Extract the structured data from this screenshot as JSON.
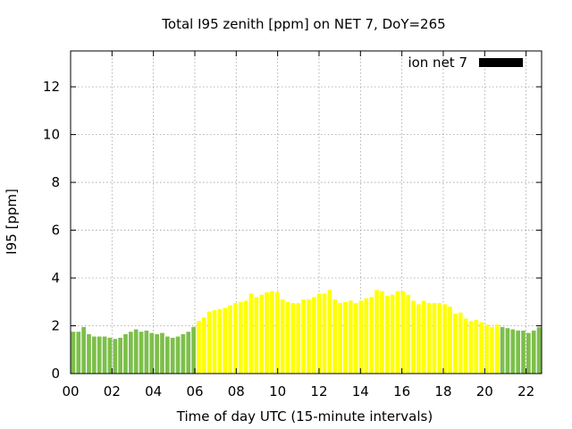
{
  "chart_data": {
    "type": "bar",
    "title": "Total I95 zenith [ppm] on NET 7, DoY=265",
    "xlabel": "Time of day UTC (15-minute intervals)",
    "ylabel": "I95 [ppm]",
    "xlim": [
      0,
      22.75
    ],
    "ylim": [
      0,
      13.5
    ],
    "xticks": [
      {
        "value": 0,
        "label": "00"
      },
      {
        "value": 2,
        "label": "02"
      },
      {
        "value": 4,
        "label": "04"
      },
      {
        "value": 6,
        "label": "06"
      },
      {
        "value": 8,
        "label": "08"
      },
      {
        "value": 10,
        "label": "10"
      },
      {
        "value": 12,
        "label": "12"
      },
      {
        "value": 14,
        "label": "14"
      },
      {
        "value": 16,
        "label": "16"
      },
      {
        "value": 18,
        "label": "18"
      },
      {
        "value": 20,
        "label": "20"
      },
      {
        "value": 22,
        "label": "22"
      }
    ],
    "yticks": [
      {
        "value": 0,
        "label": "0"
      },
      {
        "value": 2,
        "label": "2"
      },
      {
        "value": 4,
        "label": "4"
      },
      {
        "value": 6,
        "label": "6"
      },
      {
        "value": 8,
        "label": "8"
      },
      {
        "value": 10,
        "label": "10"
      },
      {
        "value": 12,
        "label": "12"
      }
    ],
    "grid": true,
    "legend": {
      "position": "top-right",
      "entries": [
        {
          "label": "ion net 7",
          "color": "#000000"
        }
      ]
    },
    "colors": {
      "night": "#7dbf4a",
      "day": "#ffff00"
    },
    "series": [
      {
        "values": [
          1.75,
          1.75,
          1.95,
          1.65,
          1.55,
          1.55,
          1.55,
          1.5,
          1.45,
          1.5,
          1.65,
          1.75,
          1.85,
          1.75,
          1.8,
          1.7,
          1.65,
          1.7,
          1.55,
          1.5,
          1.55,
          1.65,
          1.75,
          1.95,
          2.2,
          2.35,
          2.6,
          2.65,
          2.7,
          2.75,
          2.85,
          2.95,
          3.0,
          3.05,
          3.35,
          3.2,
          3.3,
          3.4,
          3.45,
          3.4,
          3.1,
          3.0,
          2.95,
          2.95,
          3.1,
          3.1,
          3.2,
          3.35,
          3.35,
          3.5,
          3.1,
          2.95,
          3.0,
          3.05,
          2.95,
          3.05,
          3.15,
          3.2,
          3.5,
          3.45,
          3.25,
          3.3,
          3.45,
          3.45,
          3.3,
          3.05,
          2.9,
          3.05,
          2.95,
          2.95,
          2.95,
          2.9,
          2.8,
          2.5,
          2.55,
          2.3,
          2.2,
          2.25,
          2.15,
          2.05,
          1.95,
          2.05,
          1.95,
          1.9,
          1.85,
          1.8,
          1.8,
          1.7,
          1.8,
          1.95
        ],
        "colors": [
          "night",
          "night",
          "night",
          "night",
          "night",
          "night",
          "night",
          "night",
          "night",
          "night",
          "night",
          "night",
          "night",
          "night",
          "night",
          "night",
          "night",
          "night",
          "night",
          "night",
          "night",
          "night",
          "night",
          "night",
          "day",
          "day",
          "day",
          "day",
          "day",
          "day",
          "day",
          "day",
          "day",
          "day",
          "day",
          "day",
          "day",
          "day",
          "day",
          "day",
          "day",
          "day",
          "day",
          "day",
          "day",
          "day",
          "day",
          "day",
          "day",
          "day",
          "day",
          "day",
          "day",
          "day",
          "day",
          "day",
          "day",
          "day",
          "day",
          "day",
          "day",
          "day",
          "day",
          "day",
          "day",
          "day",
          "day",
          "day",
          "day",
          "day",
          "day",
          "day",
          "day",
          "day",
          "day",
          "day",
          "day",
          "day",
          "day",
          "day",
          "day",
          "day",
          "night",
          "night",
          "night",
          "night",
          "night",
          "night",
          "night",
          "night"
        ]
      }
    ]
  }
}
